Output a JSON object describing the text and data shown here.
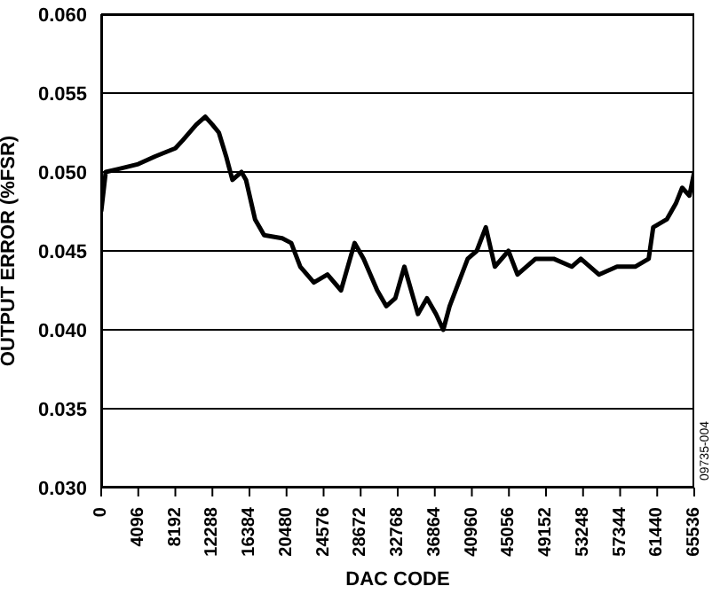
{
  "chart_data": {
    "type": "line",
    "xlabel": "DAC CODE",
    "ylabel": "OUTPUT ERROR (%FSR)",
    "x": [
      0,
      500,
      2000,
      4096,
      6000,
      8192,
      9000,
      10500,
      11500,
      12288,
      13000,
      13800,
      14500,
      15500,
      16000,
      17000,
      18000,
      20000,
      21000,
      22000,
      23500,
      25000,
      26500,
      27500,
      28000,
      29000,
      30500,
      31500,
      32500,
      33500,
      34500,
      35000,
      36000,
      37000,
      37800,
      38500,
      39500,
      40500,
      41500,
      42500,
      43500,
      45000,
      46000,
      48000,
      50000,
      52000,
      53000,
      55000,
      57000,
      59000,
      60500,
      61000,
      62500,
      63500,
      64200,
      65000,
      65536
    ],
    "series": [
      {
        "color": "#000000",
        "values": [
          0.0475,
          0.05,
          0.0502,
          0.0505,
          0.051,
          0.0515,
          0.052,
          0.053,
          0.0535,
          0.053,
          0.0525,
          0.051,
          0.0495,
          0.05,
          0.0495,
          0.047,
          0.046,
          0.0458,
          0.0455,
          0.044,
          0.043,
          0.0435,
          0.0425,
          0.0445,
          0.0455,
          0.0445,
          0.0425,
          0.0415,
          0.042,
          0.044,
          0.042,
          0.041,
          0.042,
          0.041,
          0.04,
          0.0415,
          0.043,
          0.0445,
          0.045,
          0.0465,
          0.044,
          0.045,
          0.0435,
          0.0445,
          0.0445,
          0.044,
          0.0445,
          0.0435,
          0.044,
          0.044,
          0.0445,
          0.0465,
          0.047,
          0.048,
          0.049,
          0.0485,
          0.05
        ]
      }
    ],
    "xlim": [
      0,
      65536
    ],
    "xticks": [
      0,
      4096,
      8192,
      12288,
      16384,
      20480,
      24576,
      28672,
      32768,
      36864,
      40960,
      45056,
      49152,
      53248,
      57344,
      61440,
      65536
    ],
    "ylim": [
      0.03,
      0.06
    ],
    "yticks": [
      {
        "value": 0.03,
        "label": "0.030"
      },
      {
        "value": 0.035,
        "label": "0.035"
      },
      {
        "value": 0.04,
        "label": "0.040"
      },
      {
        "value": 0.045,
        "label": "0.045"
      },
      {
        "value": 0.05,
        "label": "0.050"
      },
      {
        "value": 0.055,
        "label": "0.055"
      },
      {
        "value": 0.06,
        "label": "0.060"
      }
    ],
    "grid": "y",
    "marker": "none",
    "line_style": "solid",
    "annotations": [
      "09735-004"
    ]
  }
}
